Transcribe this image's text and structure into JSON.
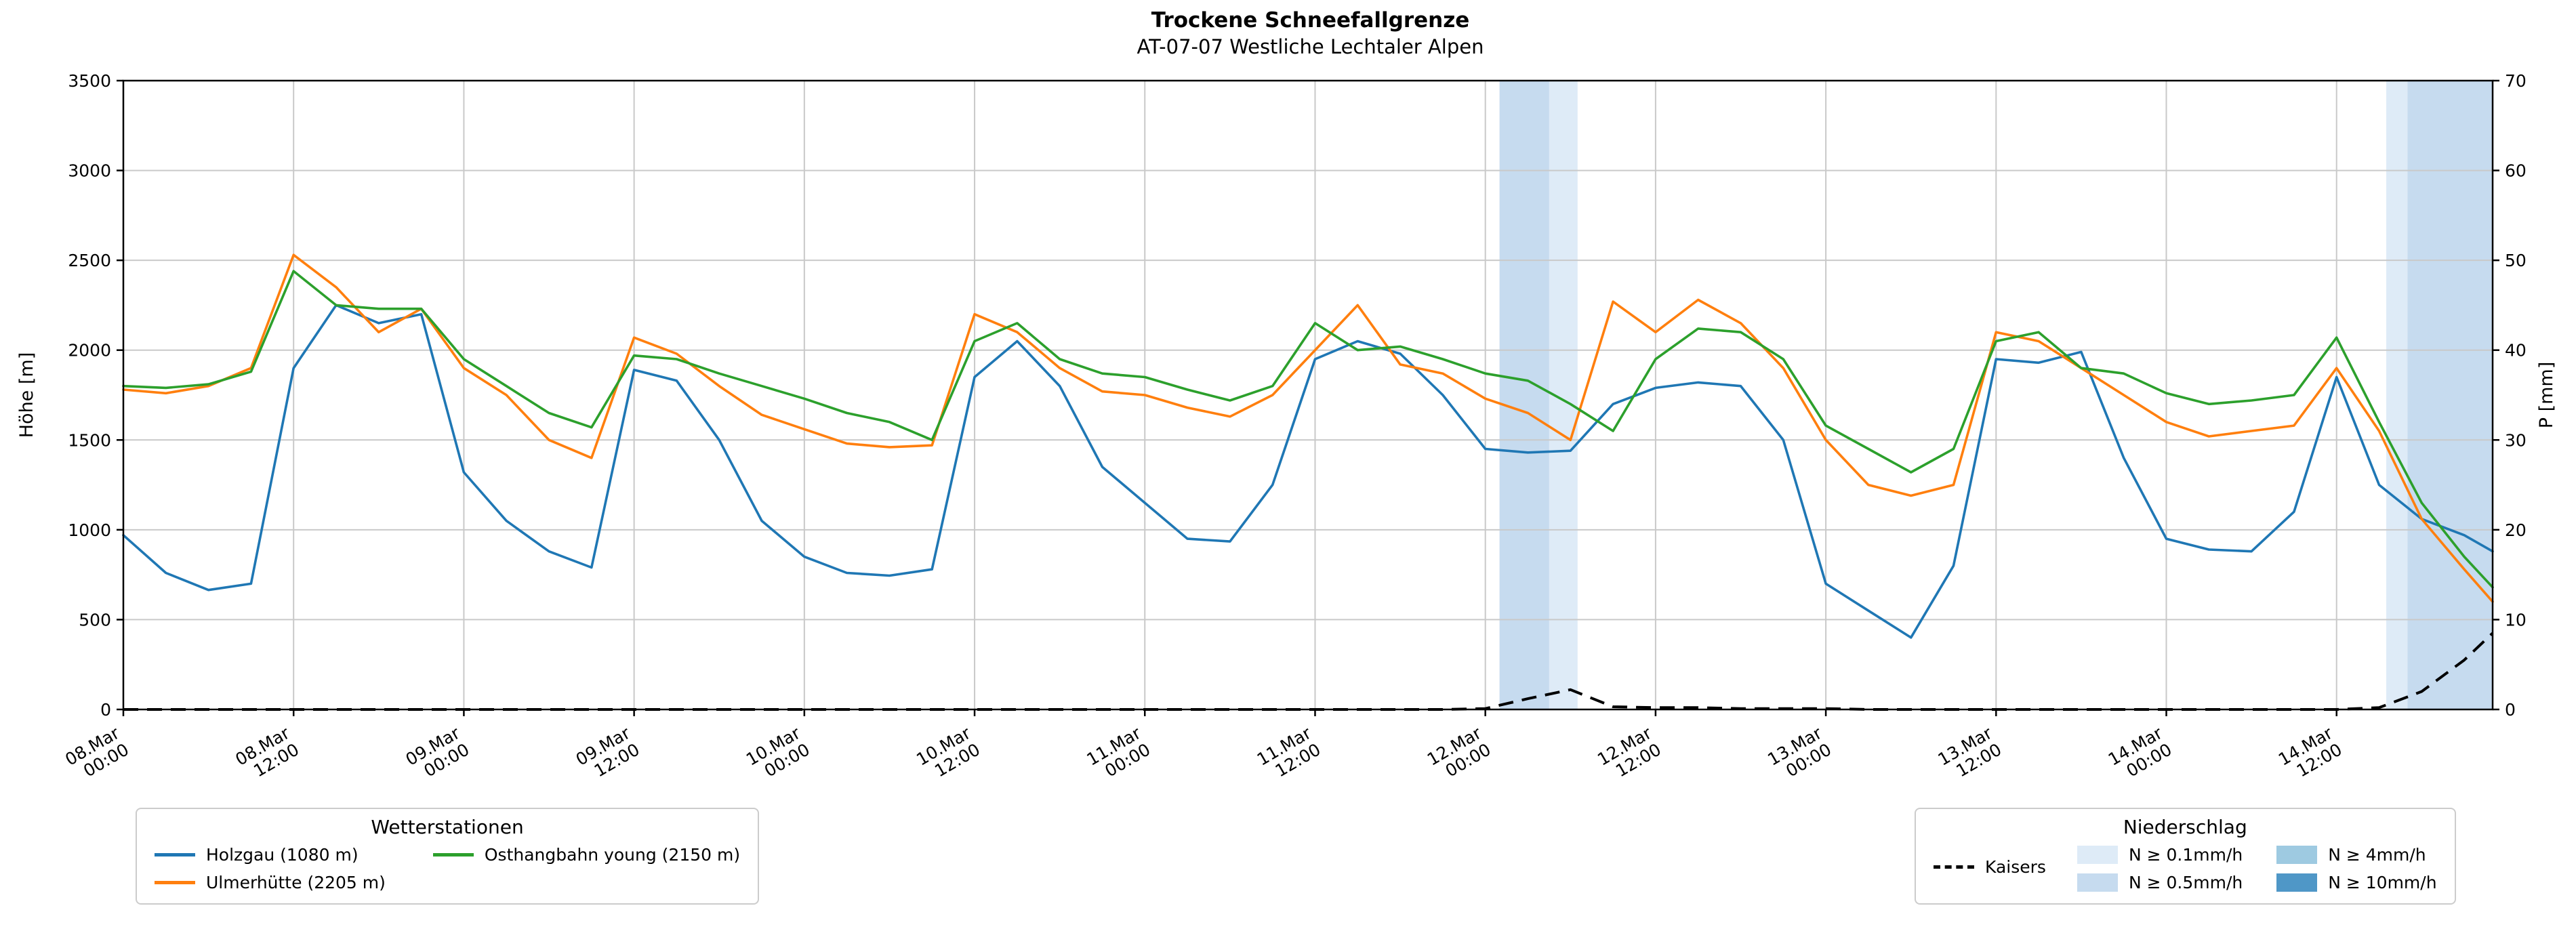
{
  "title": "Trockene Schneefallgrenze",
  "subtitle": "AT-07-07 Westliche Lechtaler Alpen",
  "legends": {
    "stations": {
      "title": "Wetterstationen"
    },
    "precip": {
      "title": "Niederschlag"
    }
  },
  "chart_data": {
    "type": "line",
    "x_hours": [
      0,
      3,
      6,
      9,
      12,
      15,
      18,
      21,
      24,
      27,
      30,
      33,
      36,
      39,
      42,
      45,
      48,
      51,
      54,
      57,
      60,
      63,
      66,
      69,
      72,
      75,
      78,
      81,
      84,
      87,
      90,
      93,
      96,
      99,
      102,
      105,
      108,
      111,
      114,
      117,
      120,
      123,
      126,
      129,
      132,
      135,
      138,
      141,
      144,
      147,
      150,
      153,
      156,
      159,
      162,
      165,
      167
    ],
    "x_ticks": [
      {
        "h": 0,
        "date": "08.Mar",
        "time": "00:00"
      },
      {
        "h": 12,
        "date": "08.Mar",
        "time": "12:00"
      },
      {
        "h": 24,
        "date": "09.Mar",
        "time": "00:00"
      },
      {
        "h": 36,
        "date": "09.Mar",
        "time": "12:00"
      },
      {
        "h": 48,
        "date": "10.Mar",
        "time": "00:00"
      },
      {
        "h": 60,
        "date": "10.Mar",
        "time": "12:00"
      },
      {
        "h": 72,
        "date": "11.Mar",
        "time": "00:00"
      },
      {
        "h": 84,
        "date": "11.Mar",
        "time": "12:00"
      },
      {
        "h": 96,
        "date": "12.Mar",
        "time": "00:00"
      },
      {
        "h": 108,
        "date": "12.Mar",
        "time": "12:00"
      },
      {
        "h": 120,
        "date": "13.Mar",
        "time": "00:00"
      },
      {
        "h": 132,
        "date": "13.Mar",
        "time": "12:00"
      },
      {
        "h": 144,
        "date": "14.Mar",
        "time": "00:00"
      },
      {
        "h": 156,
        "date": "14.Mar",
        "time": "12:00"
      }
    ],
    "left_axis": {
      "label": "Höhe [m]",
      "min": 0,
      "max": 3500,
      "step": 500
    },
    "right_axis": {
      "label": "P [mm]",
      "min": 0,
      "max": 70,
      "step": 10
    },
    "series": [
      {
        "name": "Holzgau (1080 m)",
        "color": "#1f77b4",
        "axis": "left",
        "dashed": false,
        "values": [
          970,
          760,
          665,
          700,
          1900,
          2250,
          2150,
          2200,
          1320,
          1050,
          880,
          790,
          1890,
          1830,
          1500,
          1050,
          850,
          760,
          745,
          780,
          1850,
          2050,
          1800,
          1350,
          1150,
          950,
          935,
          1250,
          1950,
          2050,
          1980,
          1750,
          1450,
          1430,
          1440,
          1700,
          1790,
          1820,
          1800,
          1500,
          700,
          550,
          400,
          800,
          1950,
          1930,
          1990,
          1400,
          950,
          890,
          880,
          1100,
          1850,
          1250,
          1060,
          970,
          880
        ]
      },
      {
        "name": "Ulmerhütte (2205 m)",
        "color": "#ff7f0e",
        "axis": "left",
        "dashed": false,
        "values": [
          1780,
          1760,
          1800,
          1900,
          2530,
          2350,
          2100,
          2230,
          1900,
          1750,
          1500,
          1400,
          2070,
          1980,
          1800,
          1640,
          1560,
          1480,
          1460,
          1470,
          2200,
          2100,
          1900,
          1770,
          1750,
          1680,
          1630,
          1750,
          2000,
          2250,
          1920,
          1870,
          1730,
          1650,
          1500,
          2270,
          2100,
          2280,
          2150,
          1900,
          1500,
          1250,
          1190,
          1250,
          2100,
          2050,
          1900,
          1750,
          1600,
          1520,
          1550,
          1580,
          1900,
          1550,
          1060,
          780,
          600
        ]
      },
      {
        "name": "Osthangbahn young (2150 m)",
        "color": "#2ca02c",
        "axis": "left",
        "dashed": false,
        "values": [
          1800,
          1790,
          1810,
          1880,
          2440,
          2250,
          2230,
          2230,
          1950,
          1800,
          1650,
          1570,
          1970,
          1950,
          1870,
          1800,
          1730,
          1650,
          1600,
          1500,
          2050,
          2150,
          1950,
          1870,
          1850,
          1780,
          1720,
          1800,
          2150,
          2000,
          2020,
          1950,
          1870,
          1830,
          1700,
          1550,
          1950,
          2120,
          2100,
          1950,
          1580,
          1450,
          1320,
          1450,
          2050,
          2100,
          1900,
          1870,
          1760,
          1700,
          1720,
          1750,
          2070,
          1600,
          1150,
          850,
          680
        ]
      },
      {
        "name": "Kaisers",
        "color": "#000000",
        "axis": "right",
        "dashed": true,
        "values": [
          0,
          0,
          0,
          0,
          0,
          0,
          0,
          0,
          0,
          0,
          0,
          0,
          0,
          0,
          0,
          0,
          0,
          0,
          0,
          0,
          0,
          0,
          0,
          0,
          0,
          0,
          0,
          0,
          0,
          0,
          0,
          0,
          0.1,
          1.2,
          2.2,
          0.3,
          0.2,
          0.2,
          0.1,
          0.1,
          0.1,
          0,
          0,
          0,
          0,
          0,
          0,
          0,
          0,
          0,
          0,
          0,
          0,
          0.2,
          2.0,
          5.5,
          8.5
        ]
      }
    ],
    "levels": [
      {
        "key": "0.1",
        "label": "N ≥ 0.1mm/h",
        "color": "#deebf7"
      },
      {
        "key": "0.5",
        "label": "N ≥ 0.5mm/h",
        "color": "#c6dbef"
      },
      {
        "key": "4",
        "label": "N ≥ 4mm/h",
        "color": "#9ecae1"
      },
      {
        "key": "10",
        "label": "N ≥ 10mm/h",
        "color": "#4f97c7"
      }
    ],
    "precip_bands": [
      {
        "start_h": 97,
        "end_h": 100.5,
        "level": "0.5"
      },
      {
        "start_h": 100.5,
        "end_h": 102.5,
        "level": "0.1"
      },
      {
        "start_h": 159.5,
        "end_h": 161,
        "level": "0.1"
      },
      {
        "start_h": 161,
        "end_h": 167,
        "level": "0.5"
      }
    ],
    "grid": true,
    "legend_position": "bottom"
  }
}
